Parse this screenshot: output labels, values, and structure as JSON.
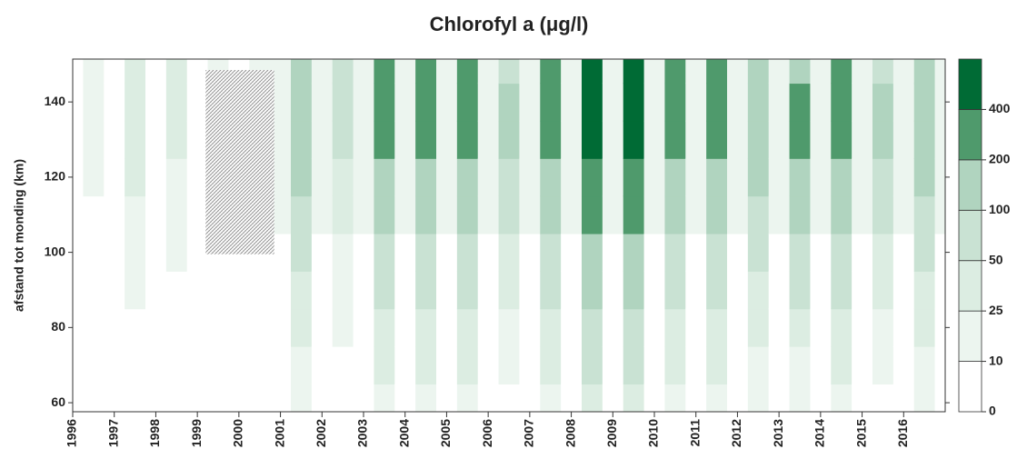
{
  "chart_data": {
    "type": "contour",
    "title": "Chlorofyl a (μg/l)",
    "y_label": "afstand tot monding (km)",
    "xlim": [
      1996,
      2017
    ],
    "ylim": [
      57.6,
      151.4
    ],
    "xticks": [
      1996,
      1997,
      1998,
      1999,
      2000,
      2001,
      2002,
      2003,
      2004,
      2005,
      2006,
      2007,
      2008,
      2009,
      2010,
      2011,
      2012,
      2013,
      2014,
      2015,
      2016
    ],
    "yticks": [
      60,
      80,
      100,
      120,
      140
    ],
    "x": [
      1996,
      1996.5,
      1997,
      1997.5,
      1998,
      1998.5,
      1999,
      1999.5,
      2000,
      2000.5,
      2001,
      2001.5,
      2002,
      2002.5,
      2003,
      2003.5,
      2004,
      2004.5,
      2005,
      2005.5,
      2006,
      2006.5,
      2007,
      2007.5,
      2008,
      2008.5,
      2009,
      2009.5,
      2010,
      2010.5,
      2011,
      2011.5,
      2012,
      2012.5,
      2013,
      2013.5,
      2014,
      2014.5,
      2015,
      2015.5,
      2016,
      2016.5,
      2017
    ],
    "y": [
      60,
      70,
      80,
      90,
      100,
      110,
      120,
      130,
      140,
      150
    ],
    "z": [
      [
        2,
        3,
        3,
        4,
        5,
        6,
        7,
        8,
        8,
        7
      ],
      [
        1,
        2,
        3,
        4,
        5,
        8,
        11,
        15,
        15,
        14
      ],
      [
        2,
        3,
        3,
        4,
        5,
        6,
        7,
        8,
        8,
        7
      ],
      [
        3,
        5,
        7,
        10,
        14,
        20,
        28,
        40,
        40,
        36
      ],
      [
        2,
        3,
        3,
        4,
        5,
        6,
        7,
        8,
        8,
        7
      ],
      [
        2,
        4,
        5,
        8,
        11,
        15,
        21,
        30,
        30,
        27
      ],
      [
        2,
        3,
        3,
        4,
        5,
        6,
        7,
        8,
        8,
        7
      ],
      [
        2,
        2,
        4,
        5,
        7,
        10,
        14,
        20,
        20,
        18
      ],
      [
        2,
        3,
        3,
        4,
        5,
        6,
        7,
        8,
        8,
        7
      ],
      [
        1,
        2,
        3,
        4,
        5,
        8,
        11,
        15,
        15,
        14
      ],
      [
        3,
        4,
        5,
        6,
        8,
        10,
        12,
        12,
        12,
        10
      ],
      [
        12,
        18,
        27,
        38,
        53,
        75,
        105,
        150,
        150,
        135
      ],
      [
        3,
        4,
        5,
        6,
        8,
        10,
        12,
        12,
        12,
        10
      ],
      [
        5,
        7,
        11,
        15,
        21,
        30,
        42,
        60,
        60,
        54
      ],
      [
        3,
        4,
        5,
        6,
        8,
        10,
        12,
        12,
        12,
        10
      ],
      [
        20,
        30,
        45,
        63,
        88,
        125,
        175,
        250,
        250,
        225
      ],
      [
        3,
        4,
        5,
        6,
        8,
        10,
        12,
        12,
        12,
        10
      ],
      [
        20,
        30,
        45,
        63,
        88,
        125,
        175,
        250,
        250,
        225
      ],
      [
        3,
        4,
        5,
        6,
        8,
        10,
        12,
        12,
        12,
        10
      ],
      [
        20,
        30,
        45,
        63,
        88,
        125,
        175,
        250,
        250,
        225
      ],
      [
        3,
        4,
        5,
        6,
        8,
        10,
        12,
        12,
        12,
        10
      ],
      [
        8,
        12,
        18,
        25,
        35,
        50,
        70,
        100,
        100,
        90
      ],
      [
        3,
        4,
        5,
        6,
        8,
        10,
        12,
        12,
        12,
        10
      ],
      [
        20,
        30,
        45,
        63,
        88,
        125,
        175,
        250,
        250,
        225
      ],
      [
        3,
        4,
        5,
        6,
        8,
        10,
        12,
        12,
        12,
        10
      ],
      [
        36,
        54,
        81,
        113,
        158,
        225,
        315,
        450,
        450,
        405
      ],
      [
        3,
        4,
        5,
        6,
        8,
        10,
        12,
        12,
        12,
        10
      ],
      [
        36,
        54,
        81,
        113,
        158,
        225,
        315,
        450,
        450,
        405
      ],
      [
        3,
        4,
        5,
        6,
        8,
        10,
        12,
        12,
        12,
        10
      ],
      [
        20,
        30,
        45,
        63,
        88,
        125,
        175,
        250,
        250,
        225
      ],
      [
        3,
        4,
        5,
        6,
        8,
        10,
        12,
        12,
        12,
        10
      ],
      [
        20,
        30,
        45,
        63,
        88,
        125,
        175,
        250,
        250,
        225
      ],
      [
        3,
        4,
        5,
        6,
        8,
        10,
        12,
        12,
        12,
        10
      ],
      [
        12,
        18,
        27,
        38,
        53,
        75,
        105,
        150,
        150,
        135
      ],
      [
        3,
        4,
        5,
        6,
        8,
        10,
        12,
        12,
        12,
        10
      ],
      [
        16,
        24,
        36,
        50,
        70,
        100,
        140,
        200,
        200,
        180
      ],
      [
        3,
        4,
        5,
        6,
        8,
        10,
        12,
        12,
        12,
        10
      ],
      [
        20,
        30,
        45,
        63,
        88,
        125,
        175,
        250,
        250,
        225
      ],
      [
        3,
        4,
        5,
        6,
        8,
        10,
        12,
        12,
        12,
        10
      ],
      [
        8,
        12,
        18,
        25,
        35,
        50,
        70,
        100,
        100,
        90
      ],
      [
        3,
        4,
        5,
        6,
        8,
        10,
        12,
        12,
        12,
        10
      ],
      [
        12,
        18,
        27,
        38,
        53,
        75,
        105,
        150,
        150,
        135
      ],
      [
        3,
        4,
        5,
        6,
        8,
        10,
        12,
        12,
        12,
        10
      ]
    ],
    "levels": [
      0,
      10,
      25,
      50,
      100,
      200,
      400
    ],
    "colors": [
      "#ffffff",
      "#ecf5ef",
      "#dcede2",
      "#c9e2d3",
      "#b0d4bf",
      "#4f9a6c",
      "#006b35"
    ],
    "no_data": {
      "x": [
        1999.2,
        2000.85
      ],
      "y": [
        99.5,
        148.5
      ]
    }
  }
}
